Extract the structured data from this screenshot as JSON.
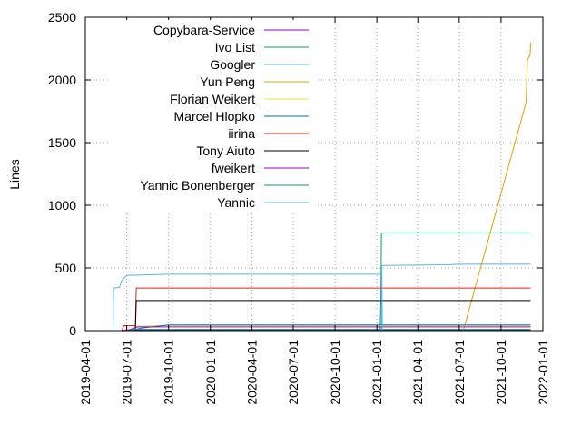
{
  "chart_data": {
    "type": "line",
    "ylabel": "Lines",
    "xlabel": "",
    "ylim": [
      0,
      2500
    ],
    "xlim": [
      "2019-04-01",
      "2022-01-01"
    ],
    "yticks": [
      0,
      500,
      1000,
      1500,
      2000,
      2500
    ],
    "xticks": [
      "2019-04-01",
      "2019-07-01",
      "2019-10-01",
      "2020-01-01",
      "2020-04-01",
      "2020-07-01",
      "2020-10-01",
      "2021-01-01",
      "2021-04-01",
      "2021-07-01",
      "2021-10-01",
      "2022-01-01"
    ],
    "grid": true,
    "legend_position": "top-left",
    "series": [
      {
        "name": "Copybara-Service",
        "color": "#9400d3",
        "points": [
          [
            "2019-06-20",
            0
          ],
          [
            "2019-07-01",
            5
          ],
          [
            "2021-12-05",
            5
          ]
        ]
      },
      {
        "name": "Ivo List",
        "color": "#009e73",
        "points": [
          [
            "2021-01-01",
            0
          ],
          [
            "2021-01-08",
            0
          ],
          [
            "2021-01-10",
            250
          ],
          [
            "2021-01-11",
            780
          ],
          [
            "2021-12-05",
            780
          ]
        ]
      },
      {
        "name": "Googler",
        "color": "#56b4e9",
        "points": [
          [
            "2021-01-11",
            0
          ],
          [
            "2021-01-12",
            520
          ],
          [
            "2021-06-01",
            525
          ],
          [
            "2021-07-01",
            530
          ],
          [
            "2021-12-05",
            530
          ]
        ]
      },
      {
        "name": "Yun Peng",
        "color": "#e69f00",
        "points": [
          [
            "2021-07-10",
            0
          ],
          [
            "2021-11-25",
            1820
          ],
          [
            "2021-11-28",
            2160
          ],
          [
            "2021-12-04",
            2200
          ],
          [
            "2021-12-05",
            2300
          ]
        ]
      },
      {
        "name": "Florian Weikert",
        "color": "#f0e442",
        "points": [
          [
            "2019-07-15",
            0
          ],
          [
            "2019-07-20",
            35
          ],
          [
            "2019-09-15",
            40
          ],
          [
            "2021-12-05",
            40
          ]
        ]
      },
      {
        "name": "Marcel Hlopko",
        "color": "#0072b2",
        "points": [
          [
            "2019-07-10",
            0
          ],
          [
            "2019-08-01",
            20
          ],
          [
            "2019-10-01",
            45
          ],
          [
            "2021-12-05",
            45
          ]
        ]
      },
      {
        "name": "iirina",
        "color": "#e51e10",
        "points": [
          [
            "2019-06-20",
            0
          ],
          [
            "2019-06-25",
            40
          ],
          [
            "2019-07-20",
            40
          ],
          [
            "2019-07-22",
            340
          ],
          [
            "2021-12-05",
            340
          ]
        ]
      },
      {
        "name": "Tony Aiuto",
        "color": "#000000",
        "points": [
          [
            "2019-07-20",
            0
          ],
          [
            "2019-07-22",
            240
          ],
          [
            "2021-12-05",
            240
          ]
        ]
      },
      {
        "name": "fweikert",
        "color": "#9400d3",
        "points": [
          [
            "2019-07-01",
            0
          ],
          [
            "2019-07-25",
            30
          ],
          [
            "2021-12-05",
            30
          ]
        ]
      },
      {
        "name": "Yannic Bonenberger",
        "color": "#009e73",
        "points": [
          [
            "2019-07-05",
            0
          ],
          [
            "2019-07-15",
            10
          ],
          [
            "2021-12-05",
            10
          ]
        ]
      },
      {
        "name": "Yannic",
        "color": "#56b4e9",
        "points": [
          [
            "2019-06-01",
            0
          ],
          [
            "2019-06-02",
            340
          ],
          [
            "2019-06-15",
            345
          ],
          [
            "2019-06-20",
            400
          ],
          [
            "2019-07-01",
            440
          ],
          [
            "2019-10-01",
            450
          ],
          [
            "2021-01-12",
            450
          ],
          [
            "2021-01-13",
            0
          ]
        ]
      }
    ]
  }
}
